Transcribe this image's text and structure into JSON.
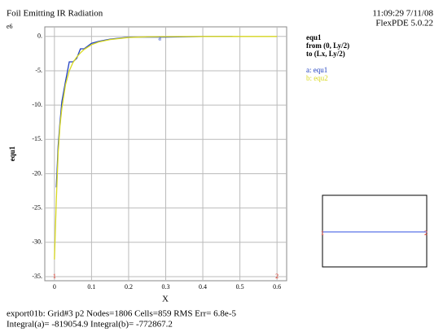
{
  "chart_data": {
    "type": "line",
    "title": "Foil Emitting IR Radiation",
    "timestamp": "11:09:29 7/11/08",
    "software": "FlexPDE 5.0.22",
    "y_label": "equ1",
    "y_scale_label": "e6",
    "x_label": "X",
    "legend_title": "equ1",
    "legend_from": "from (0, Ly/2)",
    "legend_to": "to (Lx, Ly/2)",
    "curve_tag": "a",
    "path_markers": [
      "1",
      "2"
    ],
    "footer": [
      "export01b:  Grid#3  p2  Nodes=1806 Cells=859 RMS Err= 6.8e-5",
      "Integral(a)= -819054.9 Integral(b)= -772867.2"
    ],
    "x": [
      0,
      0.005,
      0.01,
      0.015,
      0.02,
      0.03,
      0.04,
      0.05,
      0.06,
      0.07,
      0.08,
      0.1,
      0.12,
      0.15,
      0.2,
      0.25,
      0.3,
      0.4,
      0.48,
      0.6
    ],
    "series": [
      {
        "name": "a: equ1",
        "color": "#2040c0",
        "values": [
          null,
          -22,
          -16,
          -12.5,
          -9.5,
          -6.5,
          -3.7,
          -3.7,
          -3.2,
          -1.8,
          -1.8,
          -1,
          -0.7,
          -0.4,
          -0.1,
          -0.1,
          -0.1,
          0,
          0,
          null
        ]
      },
      {
        "name": "b: equ2",
        "color": "#d8d820",
        "values": [
          -32.5,
          -24,
          -17,
          -13,
          -10.5,
          -7,
          -5,
          -3.8,
          -3,
          -2.4,
          -1.9,
          -1.2,
          -0.8,
          -0.45,
          -0.15,
          -0.05,
          -0.02,
          0,
          0,
          0
        ]
      }
    ],
    "xlim": [
      -0.026,
      0.626
    ],
    "ylim": [
      -35.6,
      1.4
    ],
    "xticks": [
      0,
      0.1,
      0.2,
      0.3,
      0.4,
      0.5,
      0.6
    ],
    "yticks": [
      {
        "value": 0,
        "label": "0."
      },
      {
        "value": -5,
        "label": "-5."
      },
      {
        "value": -10,
        "label": "-10."
      },
      {
        "value": -15,
        "label": "-15."
      },
      {
        "value": -20,
        "label": "-20."
      },
      {
        "value": -25,
        "label": "-25."
      },
      {
        "value": -30,
        "label": "-30."
      },
      {
        "value": -35,
        "label": "-35."
      }
    ],
    "grid": true
  }
}
